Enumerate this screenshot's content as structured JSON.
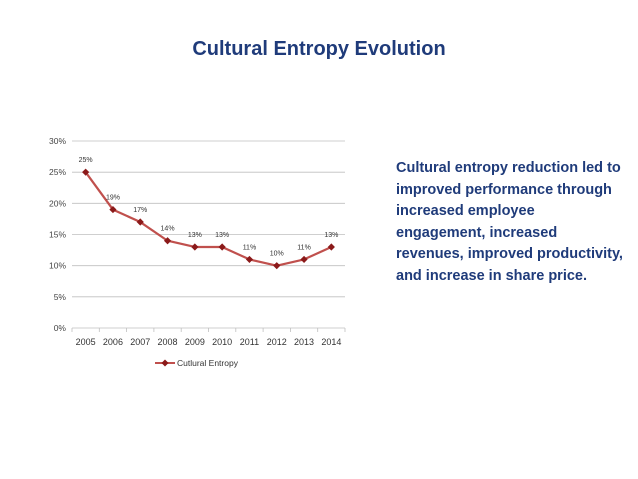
{
  "page": {
    "title": "Cultural Entropy Evolution",
    "side_text": "Cultural entropy reduction led to improved performance through increased employee engagement, increased revenues, improved productivity, and increase in share price."
  },
  "colors": {
    "title": "#1f3b7a",
    "series_line": "#c0504d",
    "series_marker": "#8b1a1a",
    "gridline": "#bfbfbf"
  },
  "chart_data": {
    "type": "line",
    "title": "",
    "xlabel": "",
    "ylabel": "",
    "categories": [
      "2005",
      "2006",
      "2007",
      "2008",
      "2009",
      "2010",
      "2011",
      "2012",
      "2013",
      "2014"
    ],
    "series": [
      {
        "name": "Cutlural Entropy",
        "values": [
          25,
          19,
          17,
          14,
          13,
          13,
          11,
          10,
          11,
          13
        ],
        "labels": [
          "25%",
          "19%",
          "17%",
          "14%",
          "13%",
          "13%",
          "11%",
          "10%",
          "11%",
          "13%"
        ]
      }
    ],
    "ylim": [
      0,
      30
    ],
    "yticks": [
      0,
      5,
      10,
      15,
      20,
      25,
      30
    ],
    "ytick_labels": [
      "0%",
      "5%",
      "10%",
      "15%",
      "20%",
      "25%",
      "30%"
    ],
    "grid": true,
    "legend": "bottom"
  }
}
